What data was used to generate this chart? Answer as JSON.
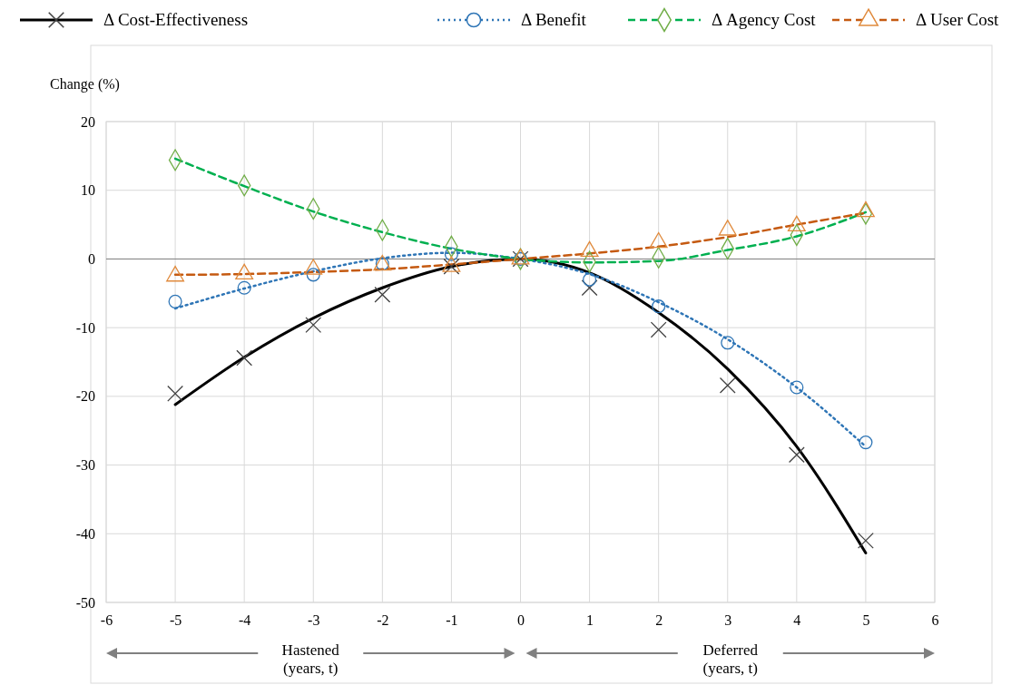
{
  "chart_data": {
    "type": "scatter",
    "ylabel": "Change (%)",
    "x": [
      -5,
      -4,
      -3,
      -2,
      -1,
      0,
      1,
      2,
      3,
      4,
      5
    ],
    "xlim": [
      -6,
      6
    ],
    "xticks": [
      -6,
      -5,
      -4,
      -3,
      -2,
      -1,
      0,
      1,
      2,
      3,
      4,
      5,
      6
    ],
    "ylim": [
      -50,
      20
    ],
    "yticks": [
      -50,
      -40,
      -30,
      -20,
      -10,
      0,
      10,
      20
    ],
    "grid": true,
    "legend": "top",
    "annotations": [
      "Hastened (years, t)",
      "Deferred (years, t)"
    ],
    "series": [
      {
        "name": "Δ Cost-Effectiveness",
        "color": "#404040",
        "marker": "cross",
        "values": [
          -19.6,
          -14.4,
          -9.6,
          -5.2,
          -1.1,
          0,
          -4.2,
          -10.3,
          -18.4,
          -28.5,
          -41.0
        ]
      },
      {
        "type": "line",
        "color": "#000000",
        "line_style": "solid",
        "marker": "none",
        "x": [
          -5,
          -4,
          -3,
          -2,
          -1,
          0,
          1,
          2,
          3,
          4,
          5
        ],
        "values": [
          -21.2,
          -14.3,
          -8.6,
          -4.2,
          -1.1,
          0,
          -2.0,
          -7.8,
          -16.0,
          -27.3,
          -42.8
        ]
      },
      {
        "name": "Δ Benefit",
        "color": "#2e75b6",
        "marker": "circle",
        "values": [
          -6.2,
          -4.2,
          -2.3,
          -0.7,
          0.7,
          0,
          -3.0,
          -6.9,
          -12.2,
          -18.7,
          -26.7
        ]
      },
      {
        "type": "line",
        "color": "#2e75b6",
        "line_style": "dotted",
        "marker": "none",
        "x": [
          -5,
          -4,
          -3,
          -2,
          -1,
          0,
          1,
          2,
          3,
          4,
          5
        ],
        "values": [
          -7.2,
          -4.3,
          -1.8,
          0.1,
          0.9,
          0,
          -2.2,
          -6.3,
          -11.7,
          -18.7,
          -27.3
        ]
      },
      {
        "name": "Δ Agency Cost",
        "color": "#70ad47",
        "marker": "diamond",
        "values": [
          14.4,
          10.7,
          7.3,
          4.2,
          1.8,
          0,
          -0.4,
          0.2,
          1.5,
          3.5,
          6.6
        ]
      },
      {
        "type": "line",
        "color": "#00b050",
        "line_style": "dashed",
        "marker": "none",
        "x": [
          -5,
          -4,
          -3,
          -2,
          -1,
          0,
          1,
          2,
          3,
          4,
          5
        ],
        "values": [
          14.6,
          10.6,
          6.9,
          3.9,
          1.5,
          0,
          -0.5,
          -0.3,
          1.3,
          3.3,
          6.8
        ]
      },
      {
        "name": "Δ User Cost",
        "color": "#e08a3c",
        "marker": "triangle",
        "values": [
          -2.5,
          -2.2,
          -1.5,
          -0.9,
          -1.1,
          0,
          1.1,
          2.4,
          4.2,
          4.8,
          6.9
        ]
      },
      {
        "type": "line",
        "color": "#c55a11",
        "line_style": "dashed",
        "marker": "none",
        "x": [
          -5,
          -4,
          -3,
          -2,
          -1,
          0,
          1,
          2,
          3,
          4,
          5
        ],
        "values": [
          -2.3,
          -2.2,
          -1.9,
          -1.5,
          -0.8,
          0,
          0.8,
          1.8,
          3.2,
          5.0,
          6.7
        ]
      }
    ]
  }
}
